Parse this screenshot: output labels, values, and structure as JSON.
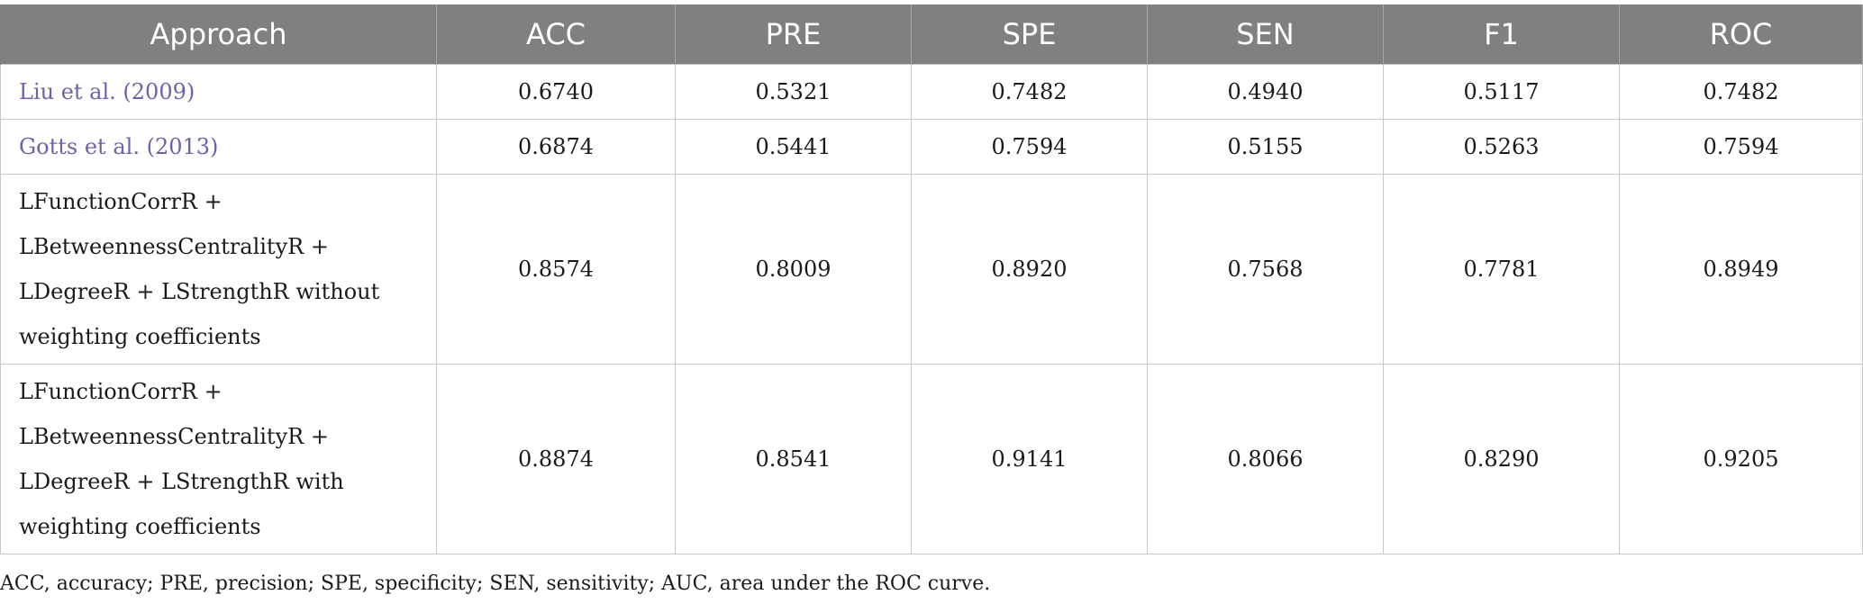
{
  "table": {
    "headers": [
      "Approach",
      "ACC",
      "PRE",
      "SPE",
      "SEN",
      "F1",
      "ROC"
    ],
    "rows": [
      {
        "approach": "Liu et al. (2009)",
        "values": [
          "0.6740",
          "0.5321",
          "0.7482",
          "0.4940",
          "0.5117",
          "0.7482"
        ]
      },
      {
        "approach": "Gotts et al. (2013)",
        "values": [
          "0.6874",
          "0.5441",
          "0.7594",
          "0.5155",
          "0.5263",
          "0.7594"
        ]
      },
      {
        "approach_lines": [
          "LFunctionCorrR +",
          "LBetweennessCentralityR +",
          "LDegreeR + LStrengthR without",
          "weighting coefficients"
        ],
        "values": [
          "0.8574",
          "0.8009",
          "0.8920",
          "0.7568",
          "0.7781",
          "0.8949"
        ]
      },
      {
        "approach_lines": [
          "LFunctionCorrR +",
          "LBetweennessCentralityR +",
          "LDegreeR + LStrengthR with",
          "weighting coefficients"
        ],
        "values": [
          "0.8874",
          "0.8541",
          "0.9141",
          "0.8066",
          "0.8290",
          "0.9205"
        ]
      }
    ]
  },
  "footnote": "ACC, accuracy; PRE, precision; SPE, specificity; SEN, sensitivity; AUC, area under the ROC curve.",
  "colors": {
    "header_bg": "#808080",
    "header_text": "#ffffff",
    "link_text": "#6b63a8",
    "grid": "#c8c8c8"
  }
}
